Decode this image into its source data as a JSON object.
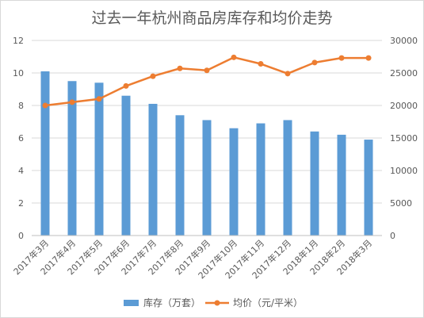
{
  "chart_data": {
    "type": "bar+line",
    "title": "过去一年杭州商品房库存和均价走势",
    "categories": [
      "2017年3月",
      "2017年4月",
      "2017年5月",
      "2017年6月",
      "2017年7月",
      "2017年8月",
      "2017年9月",
      "2017年10月",
      "2017年11月",
      "2017年12月",
      "2018年1月",
      "2018年2月",
      "2018年3月"
    ],
    "series": [
      {
        "name": "库存（万套）",
        "type": "bar",
        "axis": "left",
        "color": "#5b9bd5",
        "values": [
          10.1,
          9.5,
          9.4,
          8.6,
          8.1,
          7.4,
          7.1,
          6.6,
          6.9,
          7.1,
          6.4,
          6.2,
          5.9
        ]
      },
      {
        "name": "均价（元/平米）",
        "type": "line",
        "axis": "right",
        "color": "#ed7d31",
        "values": [
          20000,
          20500,
          21000,
          23000,
          24500,
          25700,
          25400,
          27400,
          26400,
          24900,
          26600,
          27300,
          27300
        ]
      }
    ],
    "y_left": {
      "min": 0,
      "max": 12,
      "ticks": [
        0,
        2,
        4,
        6,
        8,
        10,
        12
      ]
    },
    "y_right": {
      "min": 0,
      "max": 30000,
      "ticks": [
        0,
        5000,
        10000,
        15000,
        20000,
        25000,
        30000
      ]
    },
    "grid": true,
    "legend_position": "bottom"
  }
}
